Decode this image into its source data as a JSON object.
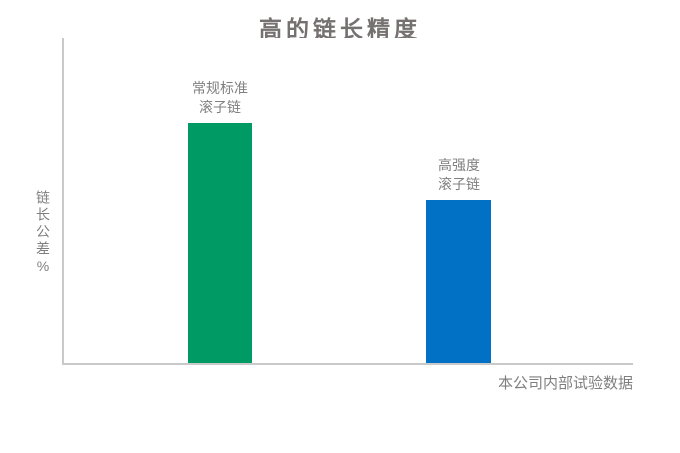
{
  "chart_data": {
    "type": "bar",
    "title": "高的链长精度",
    "xlabel": "",
    "ylabel": "链长公差%",
    "categories": [
      "常规标准滚子链",
      "高强度滚子链"
    ],
    "values": [
      100,
      68
    ],
    "value_basis": "relative heights; numeric axis not labeled in chart",
    "bars": [
      {
        "label": "常规标准\n滚子链",
        "value": 100,
        "color": "#009A64"
      },
      {
        "label": "高强度\n滚子链",
        "value": 68,
        "color": "#0071C5"
      }
    ],
    "grid": false,
    "legend": "none",
    "note": "本公司内部试验数据"
  },
  "colors": {
    "title_text": "#767171",
    "label_text": "#7F7F7F",
    "axis_line": "#C9C9C9",
    "bar_standard": "#009A64",
    "bar_high_strength": "#0071C5",
    "background": "#FFFFFF"
  }
}
